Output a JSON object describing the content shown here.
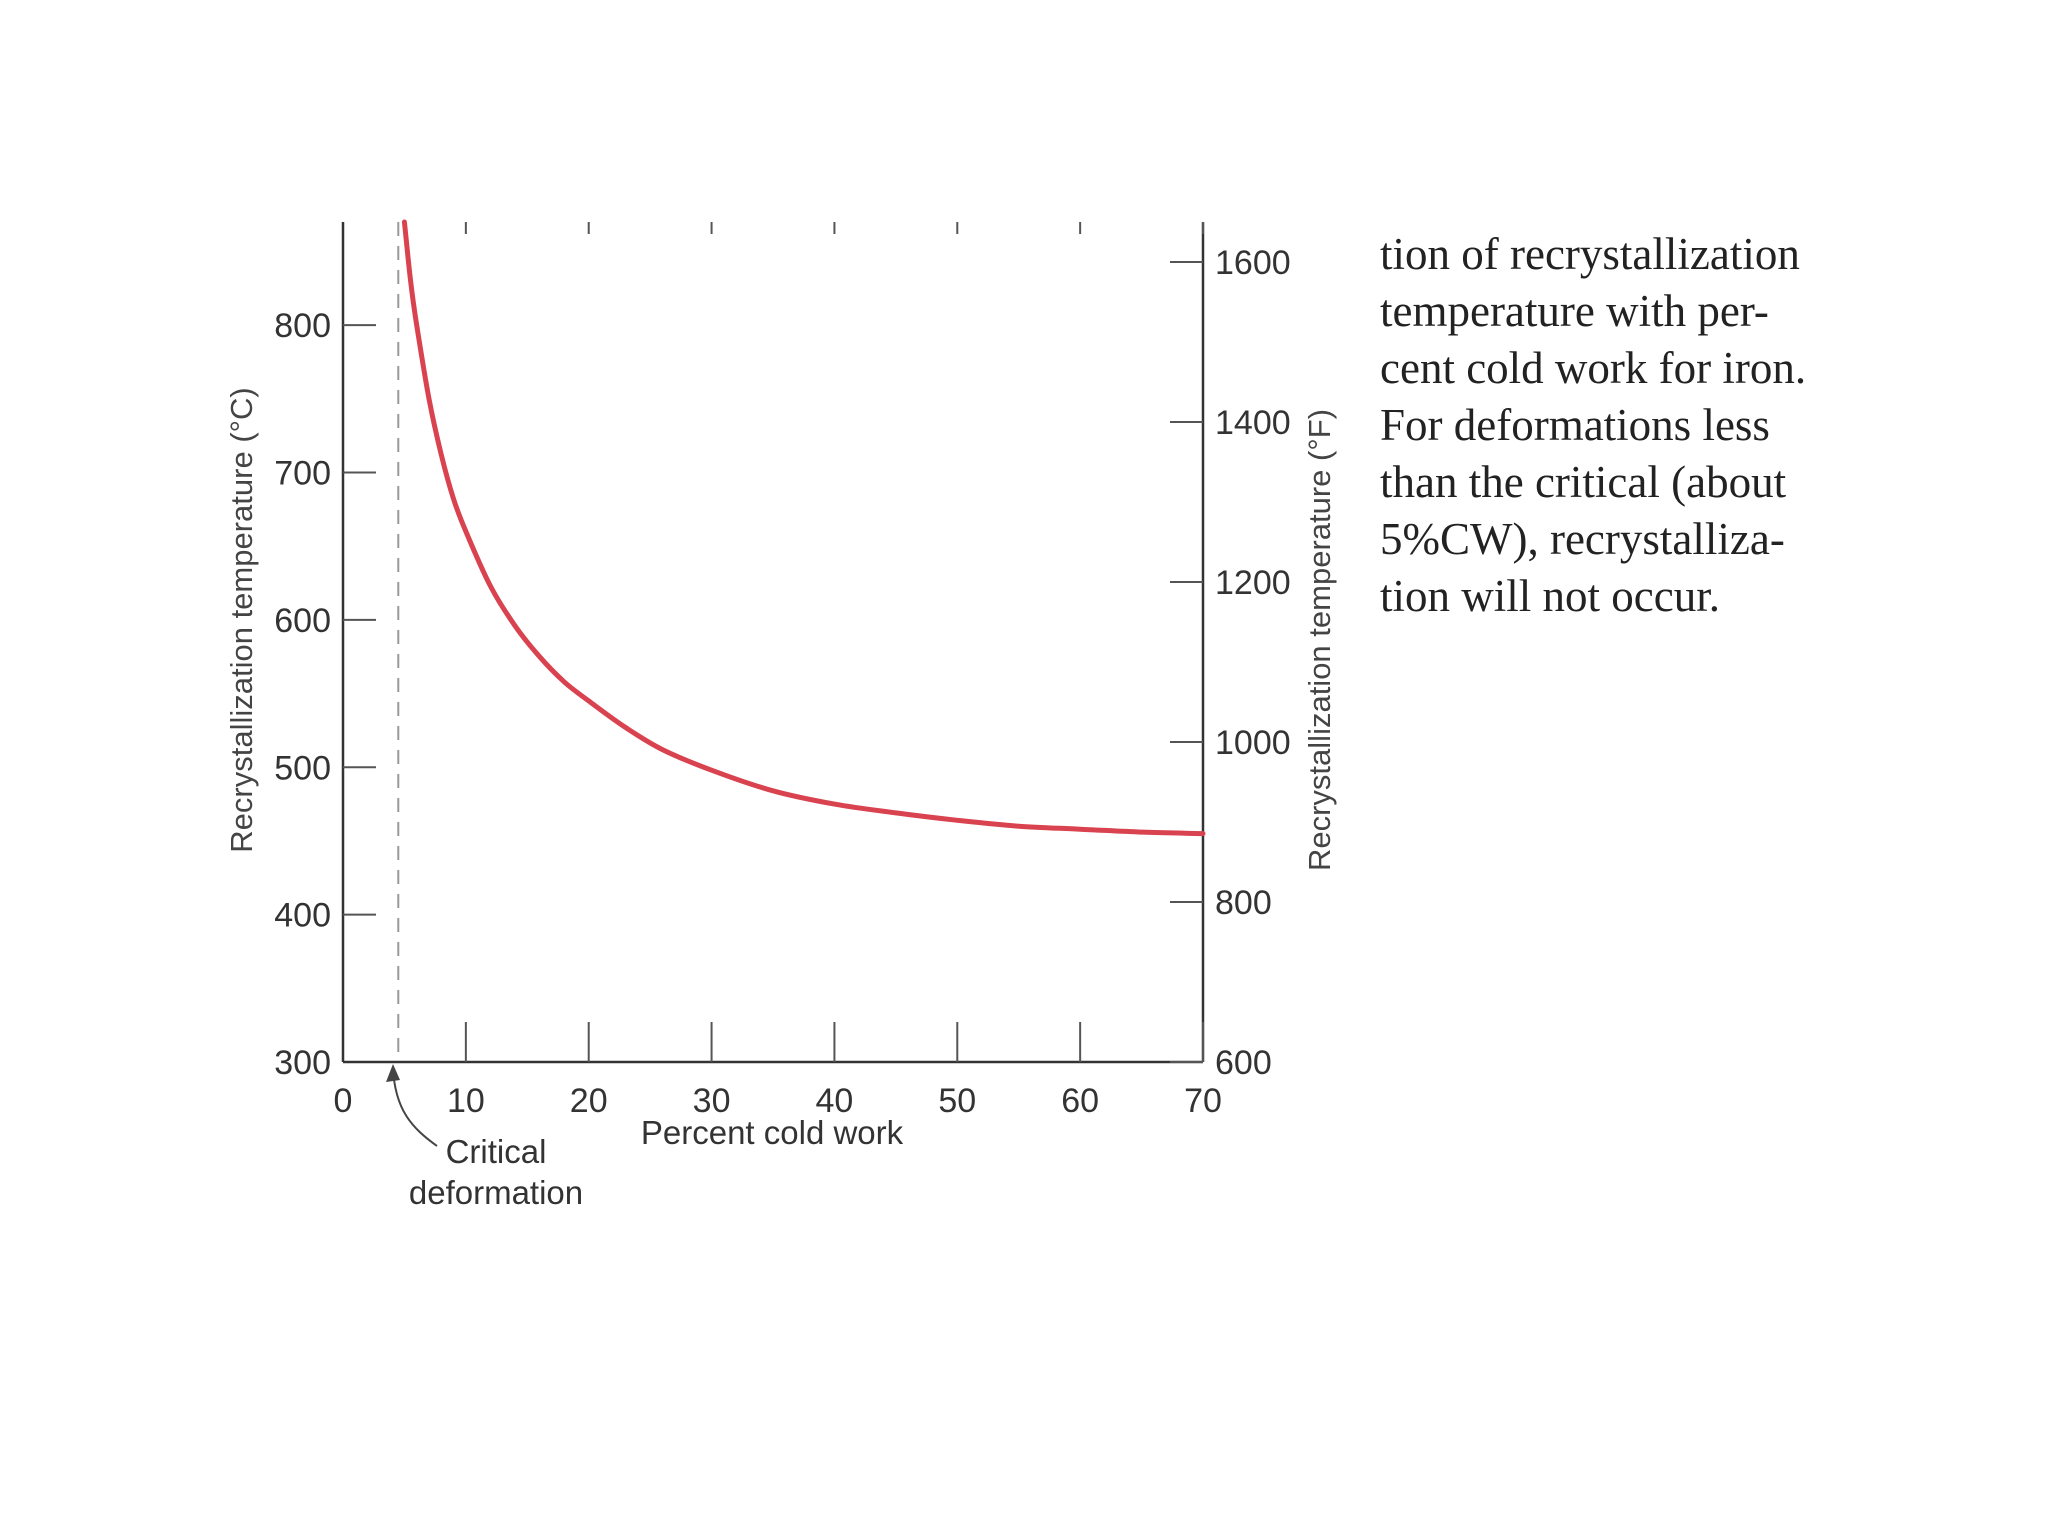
{
  "chart_data": {
    "type": "line",
    "title": "",
    "xlabel": "Percent cold work",
    "ylabel_left": "Recrystallization temperature (°C)",
    "ylabel_right": "Recrystallization temperature (°F)",
    "xlim": [
      0,
      70
    ],
    "ylim_left": [
      300,
      870
    ],
    "ylim_right": [
      600,
      1650
    ],
    "x_ticks": [
      "0",
      "10",
      "20",
      "30",
      "40",
      "50",
      "60",
      "70"
    ],
    "y_ticks_left": [
      "300",
      "400",
      "500",
      "600",
      "700",
      "800"
    ],
    "y_ticks_right": [
      "600",
      "800",
      "1000",
      "1200",
      "1400",
      "1600"
    ],
    "grid": false,
    "series_color": "#d9434f",
    "critical_deformation_x": 4.5,
    "annotation": {
      "line1": "Critical",
      "line2": "deformation"
    },
    "series": [
      {
        "x": [
          5,
          5.5,
          6,
          7,
          8,
          9,
          10,
          12,
          14,
          16,
          18,
          20,
          23,
          26,
          30,
          35,
          40,
          45,
          50,
          55,
          60,
          65,
          70
        ],
        "values": [
          870,
          830,
          800,
          750,
          712,
          682,
          660,
          623,
          596,
          575,
          558,
          545,
          527,
          512,
          498,
          484,
          475,
          469,
          464,
          460,
          458,
          456,
          455
        ]
      }
    ]
  },
  "caption": {
    "lines": [
      "tion of recrystallization",
      "temperature with per-",
      "cent cold work for iron.",
      "For deformations less",
      "than the critical (about",
      "5%CW), recrystalliza-",
      "tion will not occur."
    ]
  }
}
